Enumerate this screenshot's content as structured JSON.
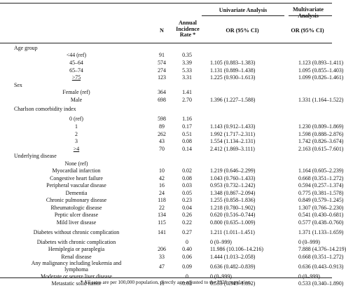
{
  "header": {
    "univariate": "Univariate Analysis",
    "multivariate_line1": "Multivariate",
    "multivariate_line2": "Analysis",
    "n": "N",
    "rate_line1": "Annual",
    "rate_line2": "Incidence",
    "rate_line3": "Rate *",
    "or_univariate": "OR (95% CI)",
    "or_multivariate": "OR (95% CI)"
  },
  "rows": [
    {
      "section": "Age group"
    },
    {
      "label": "<44 (ref)",
      "n": "91",
      "rate": "0.35",
      "or_uni": "",
      "or_multi": ""
    },
    {
      "label": "45–64",
      "n": "574",
      "rate": "3.39",
      "or_uni": "1.105 (0.883–1.383)",
      "or_multi": "1.123 (0.893–1.411)"
    },
    {
      "label": "65–74",
      "n": "274",
      "rate": "5.33",
      "or_uni": "1.131 (0.889–1.438)",
      "or_multi": "1.095 (0.855–1.403)"
    },
    {
      "label": ">75",
      "underline": true,
      "n": "123",
      "rate": "3.31",
      "or_uni": "1.225 (0.930–1.613)",
      "or_multi": "1.099 (0.826–1.461)"
    },
    {
      "section": "Sex"
    },
    {
      "label": "Female (ref)",
      "n": "364",
      "rate": "1.41",
      "or_uni": "",
      "or_multi": ""
    },
    {
      "label": "Male",
      "n": "698",
      "rate": "2.70",
      "or_uni": "1.396 (1.227–1.588)",
      "or_multi": "1.331 (1.164–1.522)"
    },
    {
      "section": "Charlson comorbidity index",
      "tall": true
    },
    {
      "label": "0 (ref)",
      "n": "598",
      "rate": "1.16",
      "or_uni": "",
      "or_multi": ""
    },
    {
      "label": "1",
      "n": "89",
      "rate": "0.17",
      "or_uni": "1.143 (0.912–1.433)",
      "or_multi": "1.230 (0.809–1.869)"
    },
    {
      "label": "2",
      "n": "262",
      "rate": "0.51",
      "or_uni": "1.992 (1.717–2.311)",
      "or_multi": "1.598 (0.888–2.876)"
    },
    {
      "label": "3",
      "n": "43",
      "rate": "0.08",
      "or_uni": "1.554 (1.134–2.131)",
      "or_multi": "1.742 (0.826–3.674)"
    },
    {
      "label": ">4",
      "underline": true,
      "n": "70",
      "rate": "0.14",
      "or_uni": "2.412 (1.869–3.111)",
      "or_multi": "2.163 (0.615–7.601)"
    },
    {
      "section": "Underlying disease"
    },
    {
      "label": "None (ref)",
      "n": "",
      "rate": "",
      "or_uni": "",
      "or_multi": ""
    },
    {
      "label": "Myocardial infarction",
      "n": "10",
      "rate": "0.02",
      "or_uni": "1.219 (0.646–2.299)",
      "or_multi": "1.164 (0.605–2.239)"
    },
    {
      "label": "Congestive heart failure",
      "n": "42",
      "rate": "0.08",
      "or_uni": "1.043 (0.760–1.433)",
      "or_multi": "0.668 (0.351–1.272)"
    },
    {
      "label": "Peripheral vascular disease",
      "n": "16",
      "rate": "0.03",
      "or_uni": "0.953 (0.732–1.242)",
      "or_multi": "0.594 (0.257–1.374)"
    },
    {
      "label": "Dementia",
      "n": "24",
      "rate": "0.05",
      "or_uni": "1.348 (0.867–2.094)",
      "or_multi": "0.775 (0.381–1.578)"
    },
    {
      "label": "Chronic pulmonary disease",
      "n": "118",
      "rate": "0.23",
      "or_uni": "1.255 (0.858–1.836)",
      "or_multi": "0.849 (0.579–1.245)"
    },
    {
      "label": "Rheumatologic disease",
      "n": "22",
      "rate": "0.04",
      "or_uni": "1.218 (0.780–1.902)",
      "or_multi": "1.307 (0.766–2.230)"
    },
    {
      "label": "Peptic ulcer disease",
      "n": "134",
      "rate": "0.26",
      "or_uni": "0.620 (0.516–0.744)",
      "or_multi": "0.541 (0.430–0.681)"
    },
    {
      "label": "Mild liver disease",
      "n": "115",
      "rate": "0.22",
      "or_uni": "0.800 (0.635–1.009)",
      "or_multi": "0.577 (0.438–0.760)"
    },
    {
      "label": "Diabetes without chronic complication",
      "n": "141",
      "rate": "0.27",
      "or_uni": "1.211 (1.011–1.451)",
      "or_multi": "1.371 (1.133–1.659)",
      "tall": true
    },
    {
      "label": "Diabetes with chronic complication",
      "n": "",
      "rate": "0",
      "or_uni": "0 (0–999)",
      "or_multi": "0 (0–999)"
    },
    {
      "label": "Hemiplegia or paraplegia",
      "n": "206",
      "rate": "0.40",
      "or_uni": "11.986 (10.106–14.216)",
      "or_multi": "7.888 (4.376–14.219)"
    },
    {
      "label": "Renal disease",
      "n": "33",
      "rate": "0.06",
      "or_uni": "1.444 (1.013–2.058)",
      "or_multi": "0.668 (0.351–1.272)"
    },
    {
      "label": "Any malignancy including leukemia and lymphoma",
      "n": "47",
      "rate": "0.09",
      "or_uni": "0.636 (0.482–0.839)",
      "or_multi": "0.636 (0.443–0.913)",
      "tall": true
    },
    {
      "label": "Moderate or severe liver disease",
      "n": "",
      "rate": "0",
      "or_uni": "0 (0–999)",
      "or_multi": "0 (0–999)"
    },
    {
      "label": "Metastatic solid tumor",
      "n": "11",
      "rate": "0.02",
      "or_uni": "0.553 (0.343–1.892)",
      "or_multi": "0.533 (0.340–1.890)"
    }
  ],
  "footnote": "* All rates are per 100,000 population, directly age-adjusted to the 2021 population."
}
